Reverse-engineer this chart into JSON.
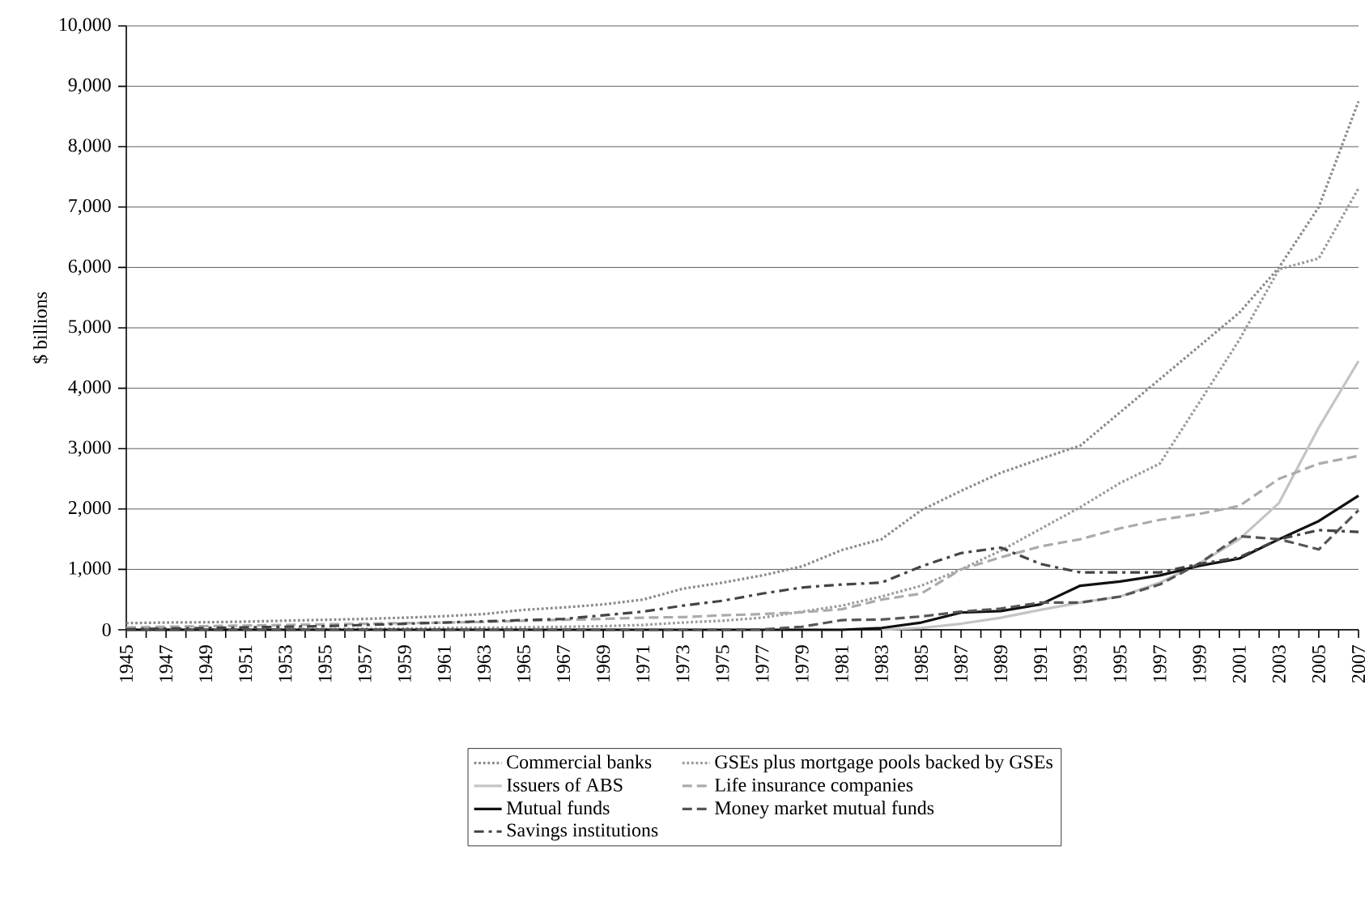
{
  "chart_data": {
    "type": "line",
    "ylabel": "$ billions",
    "x": [
      1945,
      1947,
      1949,
      1951,
      1953,
      1955,
      1957,
      1959,
      1961,
      1963,
      1965,
      1967,
      1969,
      1971,
      1973,
      1975,
      1977,
      1979,
      1981,
      1983,
      1985,
      1987,
      1989,
      1991,
      1993,
      1995,
      1997,
      1999,
      2001,
      2003,
      2005,
      2007
    ],
    "xlim": [
      1945,
      2007
    ],
    "xticks": [
      1945,
      {
        "value": 1946,
        "label": null
      },
      1947,
      {
        "value": 1948,
        "label": null
      },
      1949,
      {
        "value": 1950,
        "label": null
      },
      1951,
      {
        "value": 1952,
        "label": null
      },
      1953,
      {
        "value": 1954,
        "label": null
      },
      1955,
      {
        "value": 1956,
        "label": null
      },
      1957,
      {
        "value": 1958,
        "label": null
      },
      1959,
      {
        "value": 1960,
        "label": null
      },
      1961,
      {
        "value": 1962,
        "label": null
      },
      1963,
      {
        "value": 1964,
        "label": null
      },
      1965,
      {
        "value": 1966,
        "label": null
      },
      1967,
      {
        "value": 1968,
        "label": null
      },
      1969,
      {
        "value": 1970,
        "label": null
      },
      1971,
      {
        "value": 1972,
        "label": null
      },
      1973,
      {
        "value": 1974,
        "label": null
      },
      1975,
      {
        "value": 1976,
        "label": null
      },
      1977,
      {
        "value": 1978,
        "label": null
      },
      1979,
      {
        "value": 1980,
        "label": null
      },
      1981,
      {
        "value": 1982,
        "label": null
      },
      1983,
      {
        "value": 1984,
        "label": null
      },
      1985,
      {
        "value": 1986,
        "label": null
      },
      1987,
      {
        "value": 1988,
        "label": null
      },
      1989,
      {
        "value": 1990,
        "label": null
      },
      1991,
      {
        "value": 1992,
        "label": null
      },
      1993,
      {
        "value": 1994,
        "label": null
      },
      1995,
      {
        "value": 1996,
        "label": null
      },
      1997,
      {
        "value": 1998,
        "label": null
      },
      1999,
      {
        "value": 2000,
        "label": null
      },
      2001,
      {
        "value": 2002,
        "label": null
      },
      2003,
      {
        "value": 2004,
        "label": null
      },
      2005,
      {
        "value": 2006,
        "label": null
      },
      2007
    ],
    "ylim": [
      0,
      10000
    ],
    "yticks": [
      0,
      {
        "value": 1000,
        "label": "1,000"
      },
      {
        "value": 2000,
        "label": "2,000"
      },
      {
        "value": 3000,
        "label": "3,000"
      },
      {
        "value": 4000,
        "label": "4,000"
      },
      {
        "value": 5000,
        "label": "5,000"
      },
      {
        "value": 6000,
        "label": "6,000"
      },
      {
        "value": 7000,
        "label": "7,000"
      },
      {
        "value": 8000,
        "label": "8,000"
      },
      {
        "value": 9000,
        "label": "9,000"
      },
      {
        "value": 10000,
        "label": "10,000"
      }
    ],
    "grid": "y",
    "legend": "bottom",
    "series": [
      {
        "name": "Commercial banks",
        "color": "#8a8a8a",
        "line_style": "dotted",
        "values": [
          110,
          120,
          125,
          135,
          150,
          165,
          180,
          200,
          225,
          260,
          330,
          370,
          420,
          500,
          680,
          780,
          900,
          1050,
          1320,
          1500,
          1980,
          2300,
          2600,
          2830,
          3050,
          3600,
          4150,
          4700,
          5250,
          6000,
          7000,
          8750
        ]
      },
      {
        "name": "GSEs plus mortgage pools backed by GSEs",
        "color": "#9a9a9a",
        "line_style": "dotted",
        "values": [
          5,
          5,
          5,
          8,
          10,
          12,
          15,
          20,
          30,
          35,
          40,
          50,
          60,
          80,
          120,
          150,
          200,
          300,
          400,
          550,
          730,
          1000,
          1310,
          1670,
          2030,
          2430,
          2750,
          3770,
          4800,
          5970,
          6150,
          7310
        ]
      },
      {
        "name": "Issuers of ABS",
        "color": "#c4c4c4",
        "line_style": "solid",
        "values": [
          null,
          null,
          null,
          null,
          null,
          null,
          null,
          null,
          null,
          null,
          null,
          null,
          null,
          null,
          null,
          null,
          null,
          null,
          null,
          0,
          30,
          100,
          200,
          330,
          450,
          550,
          780,
          1100,
          1500,
          2100,
          3350,
          4450
        ]
      },
      {
        "name": "Life insurance companies",
        "color": "#ababab",
        "line_style": "dashed",
        "values": [
          40,
          50,
          60,
          70,
          80,
          90,
          100,
          110,
          120,
          130,
          150,
          165,
          180,
          200,
          210,
          240,
          260,
          290,
          340,
          500,
          600,
          1000,
          1200,
          1380,
          1500,
          1680,
          1820,
          1920,
          2050,
          2500,
          2750,
          2880
        ]
      },
      {
        "name": "Mutual funds",
        "color": "#111111",
        "line_style": "solid",
        "values": [
          0,
          0,
          0,
          0,
          0,
          0,
          0,
          0,
          0,
          0,
          0,
          0,
          0,
          0,
          0,
          0,
          0,
          0,
          0,
          30,
          120,
          285,
          310,
          420,
          730,
          800,
          900,
          1060,
          1180,
          1500,
          1800,
          2220
        ]
      },
      {
        "name": "Money market mutual funds",
        "color": "#555555",
        "line_style": "dashed",
        "values": [
          0,
          0,
          0,
          0,
          0,
          0,
          0,
          0,
          0,
          0,
          0,
          0,
          0,
          0,
          0,
          0,
          5,
          50,
          160,
          170,
          220,
          300,
          350,
          450,
          450,
          550,
          750,
          1100,
          1550,
          1500,
          1330,
          1980
        ]
      },
      {
        "name": "Savings institutions",
        "color": "#444444",
        "line_style": "dashdot",
        "values": [
          10,
          20,
          30,
          40,
          50,
          60,
          80,
          100,
          120,
          140,
          160,
          180,
          240,
          300,
          400,
          480,
          600,
          700,
          750,
          780,
          1050,
          1270,
          1360,
          1090,
          950,
          950,
          950,
          1090,
          1200,
          1500,
          1650,
          1620
        ]
      }
    ]
  }
}
